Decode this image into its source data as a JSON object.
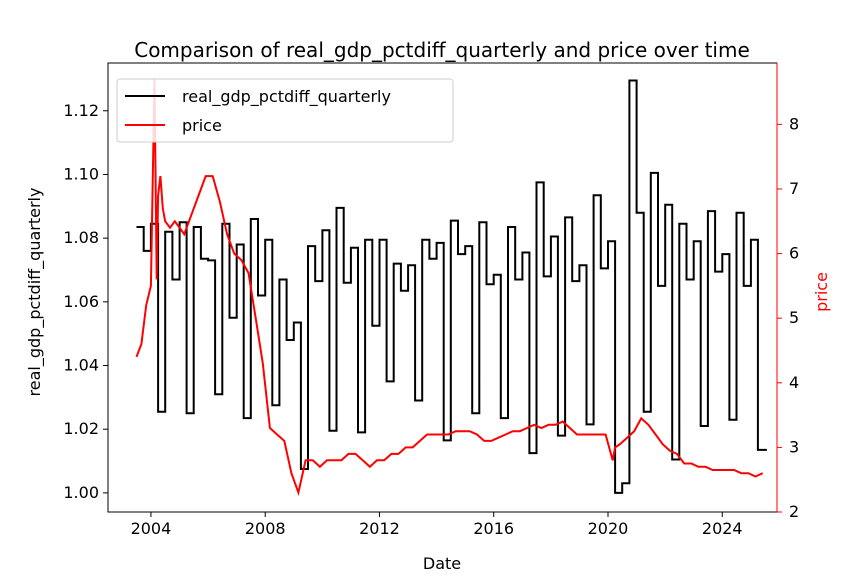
{
  "chart_data": {
    "type": "line",
    "title": "Comparison of real_gdp_pctdiff_quarterly and price over time",
    "xlabel": "Date",
    "ylabel_left": "real_gdp_pctdiff_quarterly",
    "ylabel_right": "price",
    "colors": {
      "gdp": "#000000",
      "price": "#ff0000"
    },
    "legend_position": "upper-left",
    "grid": false,
    "x_range": [
      "2002-07-01",
      "2025-12-01"
    ],
    "x_ticks": [
      "2004",
      "2008",
      "2012",
      "2016",
      "2020",
      "2024"
    ],
    "y_left_range": [
      0.994,
      1.135
    ],
    "y_left_ticks": [
      "1.00",
      "1.02",
      "1.04",
      "1.06",
      "1.08",
      "1.10",
      "1.12"
    ],
    "y_right_range": [
      2.0,
      8.95
    ],
    "y_right_ticks": [
      "2",
      "3",
      "4",
      "5",
      "6",
      "7",
      "8"
    ],
    "series": [
      {
        "name": "real_gdp_pctdiff_quarterly",
        "step": true,
        "x": [
          "2003-07-01",
          "2003-10-01",
          "2004-01-01",
          "2004-04-01",
          "2004-07-01",
          "2004-10-01",
          "2005-01-01",
          "2005-04-01",
          "2005-07-01",
          "2005-10-01",
          "2006-01-01",
          "2006-04-01",
          "2006-07-01",
          "2006-10-01",
          "2007-01-01",
          "2007-04-01",
          "2007-07-01",
          "2007-10-01",
          "2008-01-01",
          "2008-04-01",
          "2008-07-01",
          "2008-10-01",
          "2009-01-01",
          "2009-04-01",
          "2009-07-01",
          "2009-10-01",
          "2010-01-01",
          "2010-04-01",
          "2010-07-01",
          "2010-10-01",
          "2011-01-01",
          "2011-04-01",
          "2011-07-01",
          "2011-10-01",
          "2012-01-01",
          "2012-04-01",
          "2012-07-01",
          "2012-10-01",
          "2013-01-01",
          "2013-04-01",
          "2013-07-01",
          "2013-10-01",
          "2014-01-01",
          "2014-04-01",
          "2014-07-01",
          "2014-10-01",
          "2015-01-01",
          "2015-04-01",
          "2015-07-01",
          "2015-10-01",
          "2016-01-01",
          "2016-04-01",
          "2016-07-01",
          "2016-10-01",
          "2017-01-01",
          "2017-04-01",
          "2017-07-01",
          "2017-10-01",
          "2018-01-01",
          "2018-04-01",
          "2018-07-01",
          "2018-10-01",
          "2019-01-01",
          "2019-04-01",
          "2019-07-01",
          "2019-10-01",
          "2020-01-01",
          "2020-04-01",
          "2020-07-01",
          "2020-10-01",
          "2021-01-01",
          "2021-04-01",
          "2021-07-01",
          "2021-10-01",
          "2022-01-01",
          "2022-04-01",
          "2022-07-01",
          "2022-10-01",
          "2023-01-01",
          "2023-04-01",
          "2023-07-01",
          "2023-10-01",
          "2024-01-01",
          "2024-04-01",
          "2024-07-01",
          "2024-10-01",
          "2025-01-01",
          "2025-04-01"
        ],
        "values": [
          1.0835,
          1.076,
          1.0845,
          1.0255,
          1.082,
          1.067,
          1.085,
          1.025,
          1.0835,
          1.0735,
          1.073,
          1.031,
          1.0845,
          1.055,
          1.078,
          1.0235,
          1.086,
          1.062,
          1.0795,
          1.0275,
          1.067,
          1.048,
          1.0535,
          1.0075,
          1.0775,
          1.0665,
          1.0825,
          1.0195,
          1.0895,
          1.066,
          1.077,
          1.019,
          1.0795,
          1.0525,
          1.0795,
          1.035,
          1.072,
          1.0635,
          1.0715,
          1.029,
          1.0795,
          1.0735,
          1.0785,
          1.0165,
          1.0855,
          1.075,
          1.0775,
          1.025,
          1.085,
          1.0655,
          1.0685,
          1.0235,
          1.0835,
          1.067,
          1.0755,
          1.0125,
          1.0975,
          1.068,
          1.0805,
          1.018,
          1.0865,
          1.0665,
          1.0715,
          1.0215,
          1.0935,
          1.0705,
          1.079,
          1.0,
          1.003,
          1.1295,
          1.088,
          1.0255,
          1.1005,
          1.065,
          1.0905,
          1.0105,
          1.0845,
          1.067,
          1.079,
          1.021,
          1.0885,
          1.0695,
          1.075,
          1.023,
          1.088,
          1.065,
          1.0795,
          1.0135
        ]
      },
      {
        "name": "price",
        "step": false,
        "x": [
          "2003-07-01",
          "2003-09-01",
          "2003-11-01",
          "2004-01-01",
          "2004-02-15",
          "2004-03-15",
          "2004-04-01",
          "2004-05-01",
          "2004-06-01",
          "2004-07-01",
          "2004-09-01",
          "2004-11-01",
          "2005-01-01",
          "2005-03-01",
          "2005-06-01",
          "2005-09-01",
          "2005-12-01",
          "2006-03-01",
          "2006-06-01",
          "2006-09-01",
          "2006-12-01",
          "2007-03-01",
          "2007-06-01",
          "2007-09-01",
          "2007-12-01",
          "2008-03-01",
          "2008-06-01",
          "2008-09-01",
          "2008-12-01",
          "2009-03-01",
          "2009-06-01",
          "2009-09-01",
          "2009-12-01",
          "2010-03-01",
          "2010-06-01",
          "2010-09-01",
          "2010-12-01",
          "2011-03-01",
          "2011-06-01",
          "2011-09-01",
          "2011-12-01",
          "2012-03-01",
          "2012-06-01",
          "2012-09-01",
          "2012-12-01",
          "2013-03-01",
          "2013-06-01",
          "2013-09-01",
          "2013-12-01",
          "2014-03-01",
          "2014-06-01",
          "2014-09-01",
          "2014-12-01",
          "2015-03-01",
          "2015-06-01",
          "2015-09-01",
          "2015-12-01",
          "2016-03-01",
          "2016-06-01",
          "2016-09-01",
          "2016-12-01",
          "2017-03-01",
          "2017-06-01",
          "2017-09-01",
          "2017-12-01",
          "2018-03-01",
          "2018-06-01",
          "2018-09-01",
          "2018-12-01",
          "2019-03-01",
          "2019-06-01",
          "2019-09-01",
          "2019-12-01",
          "2020-03-01",
          "2020-04-01",
          "2020-06-01",
          "2020-09-01",
          "2020-12-01",
          "2021-03-01",
          "2021-06-01",
          "2021-09-01",
          "2021-12-01",
          "2022-03-01",
          "2022-06-01",
          "2022-09-01",
          "2022-12-01",
          "2023-03-01",
          "2023-06-01",
          "2023-09-01",
          "2023-12-01",
          "2024-03-01",
          "2024-06-01",
          "2024-09-01",
          "2024-12-01",
          "2025-03-01",
          "2025-06-01"
        ],
        "values": [
          4.4,
          4.6,
          5.2,
          5.5,
          8.7,
          5.6,
          6.9,
          7.2,
          6.7,
          6.5,
          6.4,
          6.5,
          6.4,
          6.3,
          6.6,
          6.9,
          7.2,
          7.2,
          6.8,
          6.3,
          6.0,
          5.9,
          5.7,
          5.0,
          4.3,
          3.3,
          3.2,
          3.1,
          2.6,
          2.3,
          2.8,
          2.8,
          2.7,
          2.8,
          2.8,
          2.8,
          2.9,
          2.9,
          2.8,
          2.7,
          2.8,
          2.8,
          2.9,
          2.9,
          3.0,
          3.0,
          3.1,
          3.2,
          3.2,
          3.2,
          3.2,
          3.25,
          3.25,
          3.25,
          3.2,
          3.1,
          3.1,
          3.15,
          3.2,
          3.25,
          3.25,
          3.3,
          3.35,
          3.3,
          3.35,
          3.35,
          3.4,
          3.3,
          3.2,
          3.2,
          3.2,
          3.2,
          3.2,
          2.8,
          3.0,
          3.05,
          3.15,
          3.25,
          3.45,
          3.35,
          3.2,
          3.05,
          2.95,
          2.9,
          2.75,
          2.75,
          2.7,
          2.7,
          2.65,
          2.65,
          2.65,
          2.65,
          2.6,
          2.6,
          2.55,
          2.6
        ]
      }
    ]
  }
}
